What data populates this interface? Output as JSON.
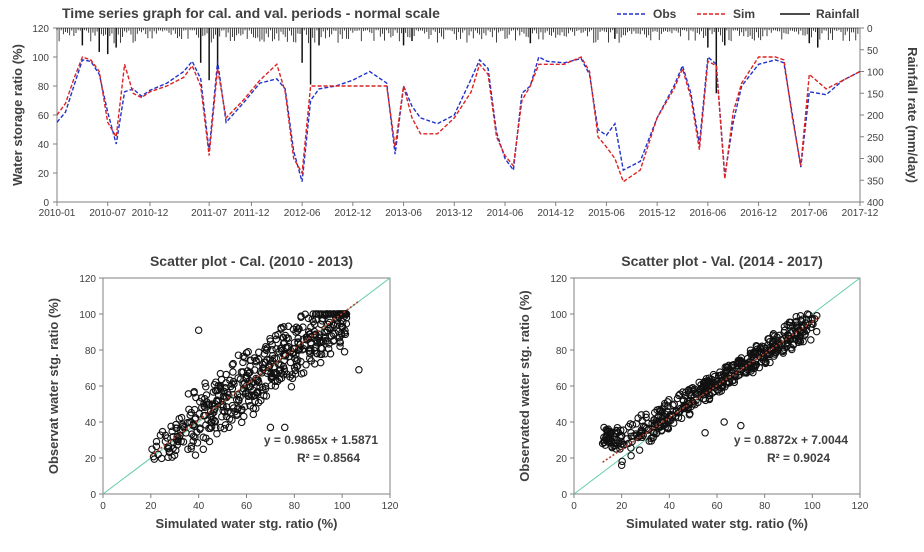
{
  "chart_data": [
    {
      "type": "line",
      "title": "Time series graph for cal. and val. periods - normal scale",
      "ylabel": "Water storage ratio (%)",
      "y2label": "Rainfall rate (mm/day)",
      "xlim": [
        "2010-01",
        "2017-12"
      ],
      "ylim": [
        0,
        120
      ],
      "y2lim": [
        400,
        0
      ],
      "x_ticks": [
        "2010-01",
        "2010-07",
        "2010-12",
        "2011-07",
        "2011-12",
        "2012-06",
        "2012-12",
        "2013-06",
        "2013-12",
        "2014-06",
        "2014-12",
        "2015-06",
        "2015-12",
        "2016-06",
        "2016-12",
        "2017-06",
        "2017-12"
      ],
      "y_ticks": [
        "0",
        "20",
        "40",
        "60",
        "80",
        "100",
        "120"
      ],
      "y2_ticks": [
        "0",
        "50",
        "100",
        "150",
        "200",
        "250",
        "300",
        "350",
        "400"
      ],
      "legend": [
        "Obs",
        "Sim",
        "Rainfall"
      ],
      "legend_position": "top-right",
      "colors": {
        "obs": "#2233cc",
        "sim": "#dd2222",
        "rain": "#111111"
      },
      "series": [
        {
          "name": "Obs",
          "style": "dashed",
          "points": [
            [
              "2010-01",
              55
            ],
            [
              "2010-02",
              62
            ],
            [
              "2010-03",
              80
            ],
            [
              "2010-04",
              98
            ],
            [
              "2010-05",
              97
            ],
            [
              "2010-06",
              88
            ],
            [
              "2010-07",
              62
            ],
            [
              "2010-08",
              40
            ],
            [
              "2010-09",
              76
            ],
            [
              "2010-10",
              78
            ],
            [
              "2010-11",
              73
            ],
            [
              "2010-12",
              77
            ],
            [
              "2011-02",
              82
            ],
            [
              "2011-04",
              90
            ],
            [
              "2011-05",
              97
            ],
            [
              "2011-06",
              85
            ],
            [
              "2011-07",
              35
            ],
            [
              "2011-08",
              97
            ],
            [
              "2011-09",
              55
            ],
            [
              "2011-11",
              68
            ],
            [
              "2012-01",
              82
            ],
            [
              "2012-03",
              85
            ],
            [
              "2012-04",
              78
            ],
            [
              "2012-05",
              35
            ],
            [
              "2012-06",
              14
            ],
            [
              "2012-07",
              70
            ],
            [
              "2012-08",
              78
            ],
            [
              "2012-10",
              80
            ],
            [
              "2012-12",
              84
            ],
            [
              "2013-02",
              90
            ],
            [
              "2013-04",
              82
            ],
            [
              "2013-05",
              33
            ],
            [
              "2013-06",
              80
            ],
            [
              "2013-07",
              66
            ],
            [
              "2013-08",
              58
            ],
            [
              "2013-10",
              54
            ],
            [
              "2013-12",
              60
            ],
            [
              "2014-02",
              85
            ],
            [
              "2014-03",
              98
            ],
            [
              "2014-04",
              92
            ],
            [
              "2014-05",
              48
            ],
            [
              "2014-06",
              30
            ],
            [
              "2014-07",
              22
            ],
            [
              "2014-08",
              75
            ],
            [
              "2014-09",
              80
            ],
            [
              "2014-10",
              100
            ],
            [
              "2014-11",
              97
            ],
            [
              "2015-01",
              96
            ],
            [
              "2015-03",
              99
            ],
            [
              "2015-04",
              88
            ],
            [
              "2015-05",
              50
            ],
            [
              "2015-06",
              46
            ],
            [
              "2015-07",
              54
            ],
            [
              "2015-08",
              22
            ],
            [
              "2015-10",
              28
            ],
            [
              "2015-12",
              58
            ],
            [
              "2016-02",
              80
            ],
            [
              "2016-03",
              94
            ],
            [
              "2016-04",
              75
            ],
            [
              "2016-05",
              40
            ],
            [
              "2016-06",
              100
            ],
            [
              "2016-07",
              95
            ],
            [
              "2016-08",
              18
            ],
            [
              "2016-09",
              55
            ],
            [
              "2016-10",
              80
            ],
            [
              "2016-12",
              95
            ],
            [
              "2017-02",
              98
            ],
            [
              "2017-03",
              96
            ],
            [
              "2017-04",
              60
            ],
            [
              "2017-05",
              24
            ],
            [
              "2017-06",
              76
            ],
            [
              "2017-08",
              74
            ],
            [
              "2017-10",
              84
            ],
            [
              "2017-12",
              90
            ]
          ]
        },
        {
          "name": "Sim",
          "style": "dashed",
          "points": [
            [
              "2010-01",
              60
            ],
            [
              "2010-02",
              68
            ],
            [
              "2010-03",
              85
            ],
            [
              "2010-04",
              100
            ],
            [
              "2010-05",
              98
            ],
            [
              "2010-06",
              90
            ],
            [
              "2010-07",
              55
            ],
            [
              "2010-08",
              45
            ],
            [
              "2010-09",
              95
            ],
            [
              "2010-10",
              75
            ],
            [
              "2010-11",
              72
            ],
            [
              "2010-12",
              76
            ],
            [
              "2011-02",
              80
            ],
            [
              "2011-04",
              86
            ],
            [
              "2011-05",
              94
            ],
            [
              "2011-06",
              80
            ],
            [
              "2011-07",
              32
            ],
            [
              "2011-08",
              92
            ],
            [
              "2011-09",
              58
            ],
            [
              "2011-11",
              70
            ],
            [
              "2012-01",
              84
            ],
            [
              "2012-03",
              95
            ],
            [
              "2012-04",
              76
            ],
            [
              "2012-05",
              30
            ],
            [
              "2012-06",
              20
            ],
            [
              "2012-07",
              80
            ],
            [
              "2012-08",
              80
            ],
            [
              "2012-10",
              80
            ],
            [
              "2012-12",
              80
            ],
            [
              "2013-02",
              80
            ],
            [
              "2013-04",
              80
            ],
            [
              "2013-05",
              38
            ],
            [
              "2013-06",
              80
            ],
            [
              "2013-07",
              58
            ],
            [
              "2013-08",
              47
            ],
            [
              "2013-10",
              47
            ],
            [
              "2013-12",
              58
            ],
            [
              "2014-02",
              76
            ],
            [
              "2014-03",
              95
            ],
            [
              "2014-04",
              88
            ],
            [
              "2014-05",
              45
            ],
            [
              "2014-06",
              32
            ],
            [
              "2014-07",
              25
            ],
            [
              "2014-08",
              70
            ],
            [
              "2014-09",
              80
            ],
            [
              "2014-10",
              95
            ],
            [
              "2014-11",
              95
            ],
            [
              "2015-01",
              95
            ],
            [
              "2015-03",
              100
            ],
            [
              "2015-04",
              90
            ],
            [
              "2015-05",
              45
            ],
            [
              "2015-06",
              38
            ],
            [
              "2015-07",
              30
            ],
            [
              "2015-08",
              14
            ],
            [
              "2015-10",
              22
            ],
            [
              "2015-12",
              58
            ],
            [
              "2016-02",
              78
            ],
            [
              "2016-03",
              92
            ],
            [
              "2016-04",
              72
            ],
            [
              "2016-05",
              36
            ],
            [
              "2016-06",
              97
            ],
            [
              "2016-07",
              94
            ],
            [
              "2016-08",
              16
            ],
            [
              "2016-09",
              62
            ],
            [
              "2016-10",
              82
            ],
            [
              "2016-12",
              100
            ],
            [
              "2017-02",
              100
            ],
            [
              "2017-03",
              98
            ],
            [
              "2017-04",
              58
            ],
            [
              "2017-05",
              25
            ],
            [
              "2017-06",
              88
            ],
            [
              "2017-08",
              78
            ],
            [
              "2017-10",
              84
            ],
            [
              "2017-12",
              90
            ]
          ]
        }
      ],
      "rainfall_series": {
        "name": "Rainfall",
        "type": "bar",
        "events_mm_per_day": [
          [
            "2010-04",
            40
          ],
          [
            "2010-06",
            55
          ],
          [
            "2010-07",
            60
          ],
          [
            "2010-08",
            45
          ],
          [
            "2011-06",
            80
          ],
          [
            "2011-07",
            120
          ],
          [
            "2011-08",
            95
          ],
          [
            "2012-06",
            80
          ],
          [
            "2012-07",
            130
          ],
          [
            "2012-08",
            40
          ],
          [
            "2013-06",
            40
          ],
          [
            "2013-07",
            30
          ],
          [
            "2014-09",
            35
          ],
          [
            "2015-07",
            25
          ],
          [
            "2016-06",
            45
          ],
          [
            "2016-07",
            150
          ],
          [
            "2016-08",
            40
          ],
          [
            "2017-06",
            35
          ],
          [
            "2017-07",
            45
          ]
        ]
      }
    },
    {
      "type": "scatter",
      "title": "Scatter plot - Cal. (2010 - 2013)",
      "xlabel": "Simulated water stg. ratio (%)",
      "ylabel": "Observat water stg. ratio (%)",
      "xlim": [
        0,
        120
      ],
      "ylim": [
        0,
        120
      ],
      "x_ticks": [
        "0",
        "20",
        "40",
        "60",
        "80",
        "100",
        "120"
      ],
      "y_ticks": [
        "0",
        "20",
        "40",
        "60",
        "80",
        "100",
        "120"
      ],
      "trend_equation": "y = 0.9865x + 1.5871",
      "r_squared": "R² = 0.8564",
      "trend": {
        "slope": 0.9865,
        "intercept": 1.5871
      },
      "outliers": [
        [
          40,
          91
        ],
        [
          63,
          62
        ],
        [
          70,
          37
        ],
        [
          76,
          37
        ],
        [
          101,
          79
        ],
        [
          107,
          69
        ]
      ]
    },
    {
      "type": "scatter",
      "title": "Scatter plot - Val. (2014 - 2017)",
      "xlabel": "Simulated water stg. ratio (%)",
      "ylabel": "Observated water stg. ratio (%)",
      "xlim": [
        0,
        120
      ],
      "ylim": [
        0,
        120
      ],
      "x_ticks": [
        "0",
        "20",
        "40",
        "60",
        "80",
        "100",
        "120"
      ],
      "y_ticks": [
        "0",
        "20",
        "40",
        "60",
        "80",
        "100",
        "120"
      ],
      "trend_equation": "y = 0.8872x + 7.0044",
      "r_squared": "R² = 0.9024",
      "trend": {
        "slope": 0.8872,
        "intercept": 7.0044
      },
      "outliers": [
        [
          20,
          16
        ],
        [
          24,
          32
        ],
        [
          55,
          34
        ],
        [
          63,
          40
        ],
        [
          70,
          38
        ]
      ]
    }
  ]
}
